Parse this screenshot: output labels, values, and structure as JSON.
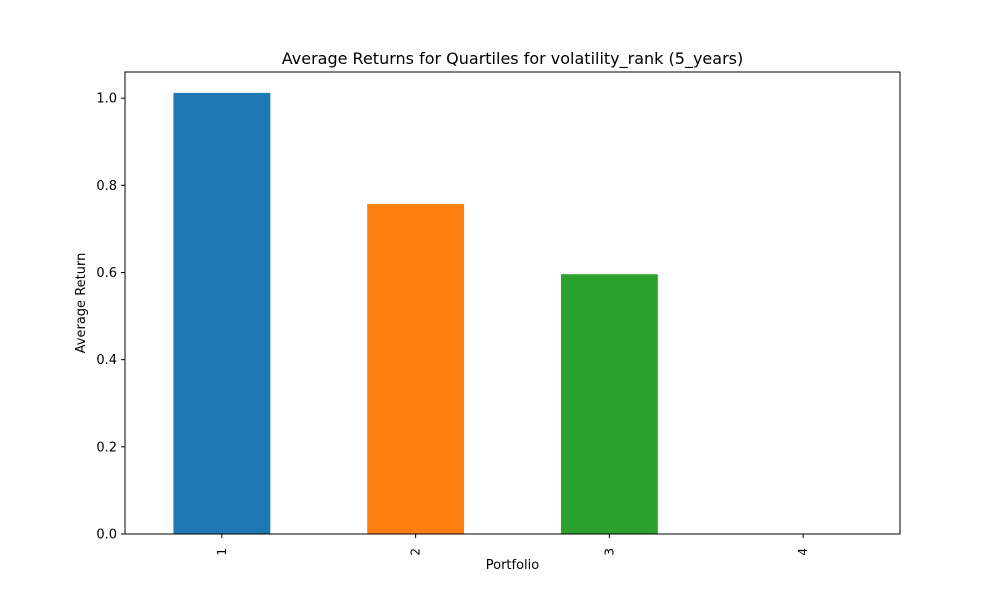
{
  "chart_data": {
    "type": "bar",
    "title": "Average Returns for Quartiles for volatility_rank (5_years)",
    "xlabel": "Portfolio",
    "ylabel": "Average Return",
    "categories": [
      "1",
      "2",
      "3",
      "4"
    ],
    "values": [
      1.012,
      0.757,
      0.596,
      0.0
    ],
    "colors": [
      "#1f77b4",
      "#ff7f0e",
      "#2ca02c",
      "#d62728"
    ],
    "ylim": [
      0,
      1.06
    ],
    "yticks": [
      0.0,
      0.2,
      0.4,
      0.6,
      0.8,
      1.0
    ],
    "ytick_labels": [
      "0.0",
      "0.2",
      "0.4",
      "0.6",
      "0.8",
      "1.0"
    ],
    "grid": false,
    "legend": "none"
  }
}
